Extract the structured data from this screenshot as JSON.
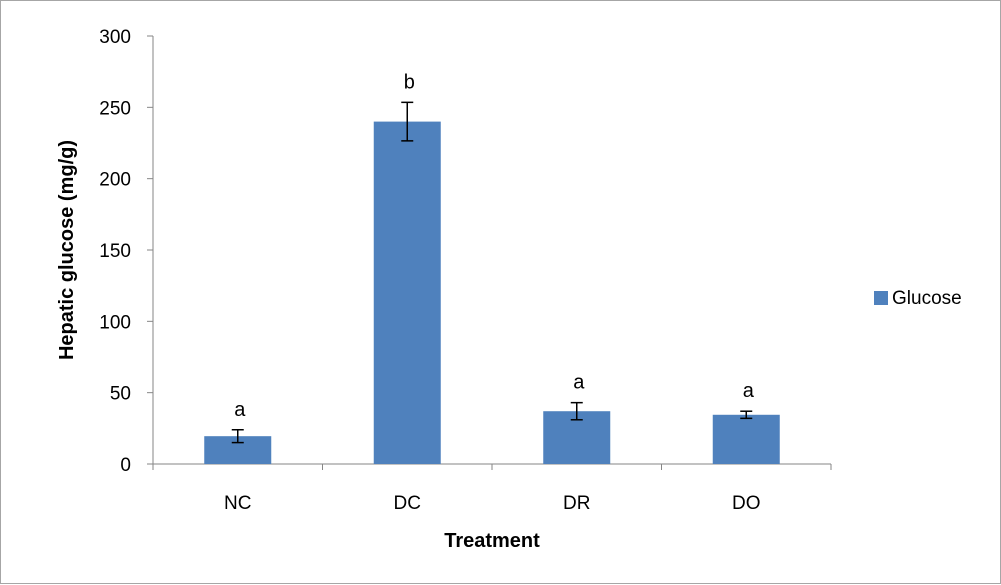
{
  "chart_data": {
    "type": "bar",
    "categories": [
      "NC",
      "DC",
      "DR",
      "DO"
    ],
    "series": [
      {
        "name": "Glucose",
        "values": [
          19.5,
          240,
          37,
          34.5
        ],
        "errors": [
          4.5,
          13.5,
          6,
          2.5
        ],
        "significance": [
          "a",
          "b",
          "a",
          "a"
        ]
      }
    ],
    "xlabel": "Treatment",
    "ylabel": "Hepatic glucose (mg/g)",
    "ylim": [
      0,
      300
    ],
    "yticks": [
      0,
      50,
      100,
      150,
      200,
      250,
      300
    ],
    "grid": false,
    "legend": "right",
    "colors": {
      "bar": "#4f81bd",
      "axis": "#868686",
      "error": "#000000"
    }
  }
}
